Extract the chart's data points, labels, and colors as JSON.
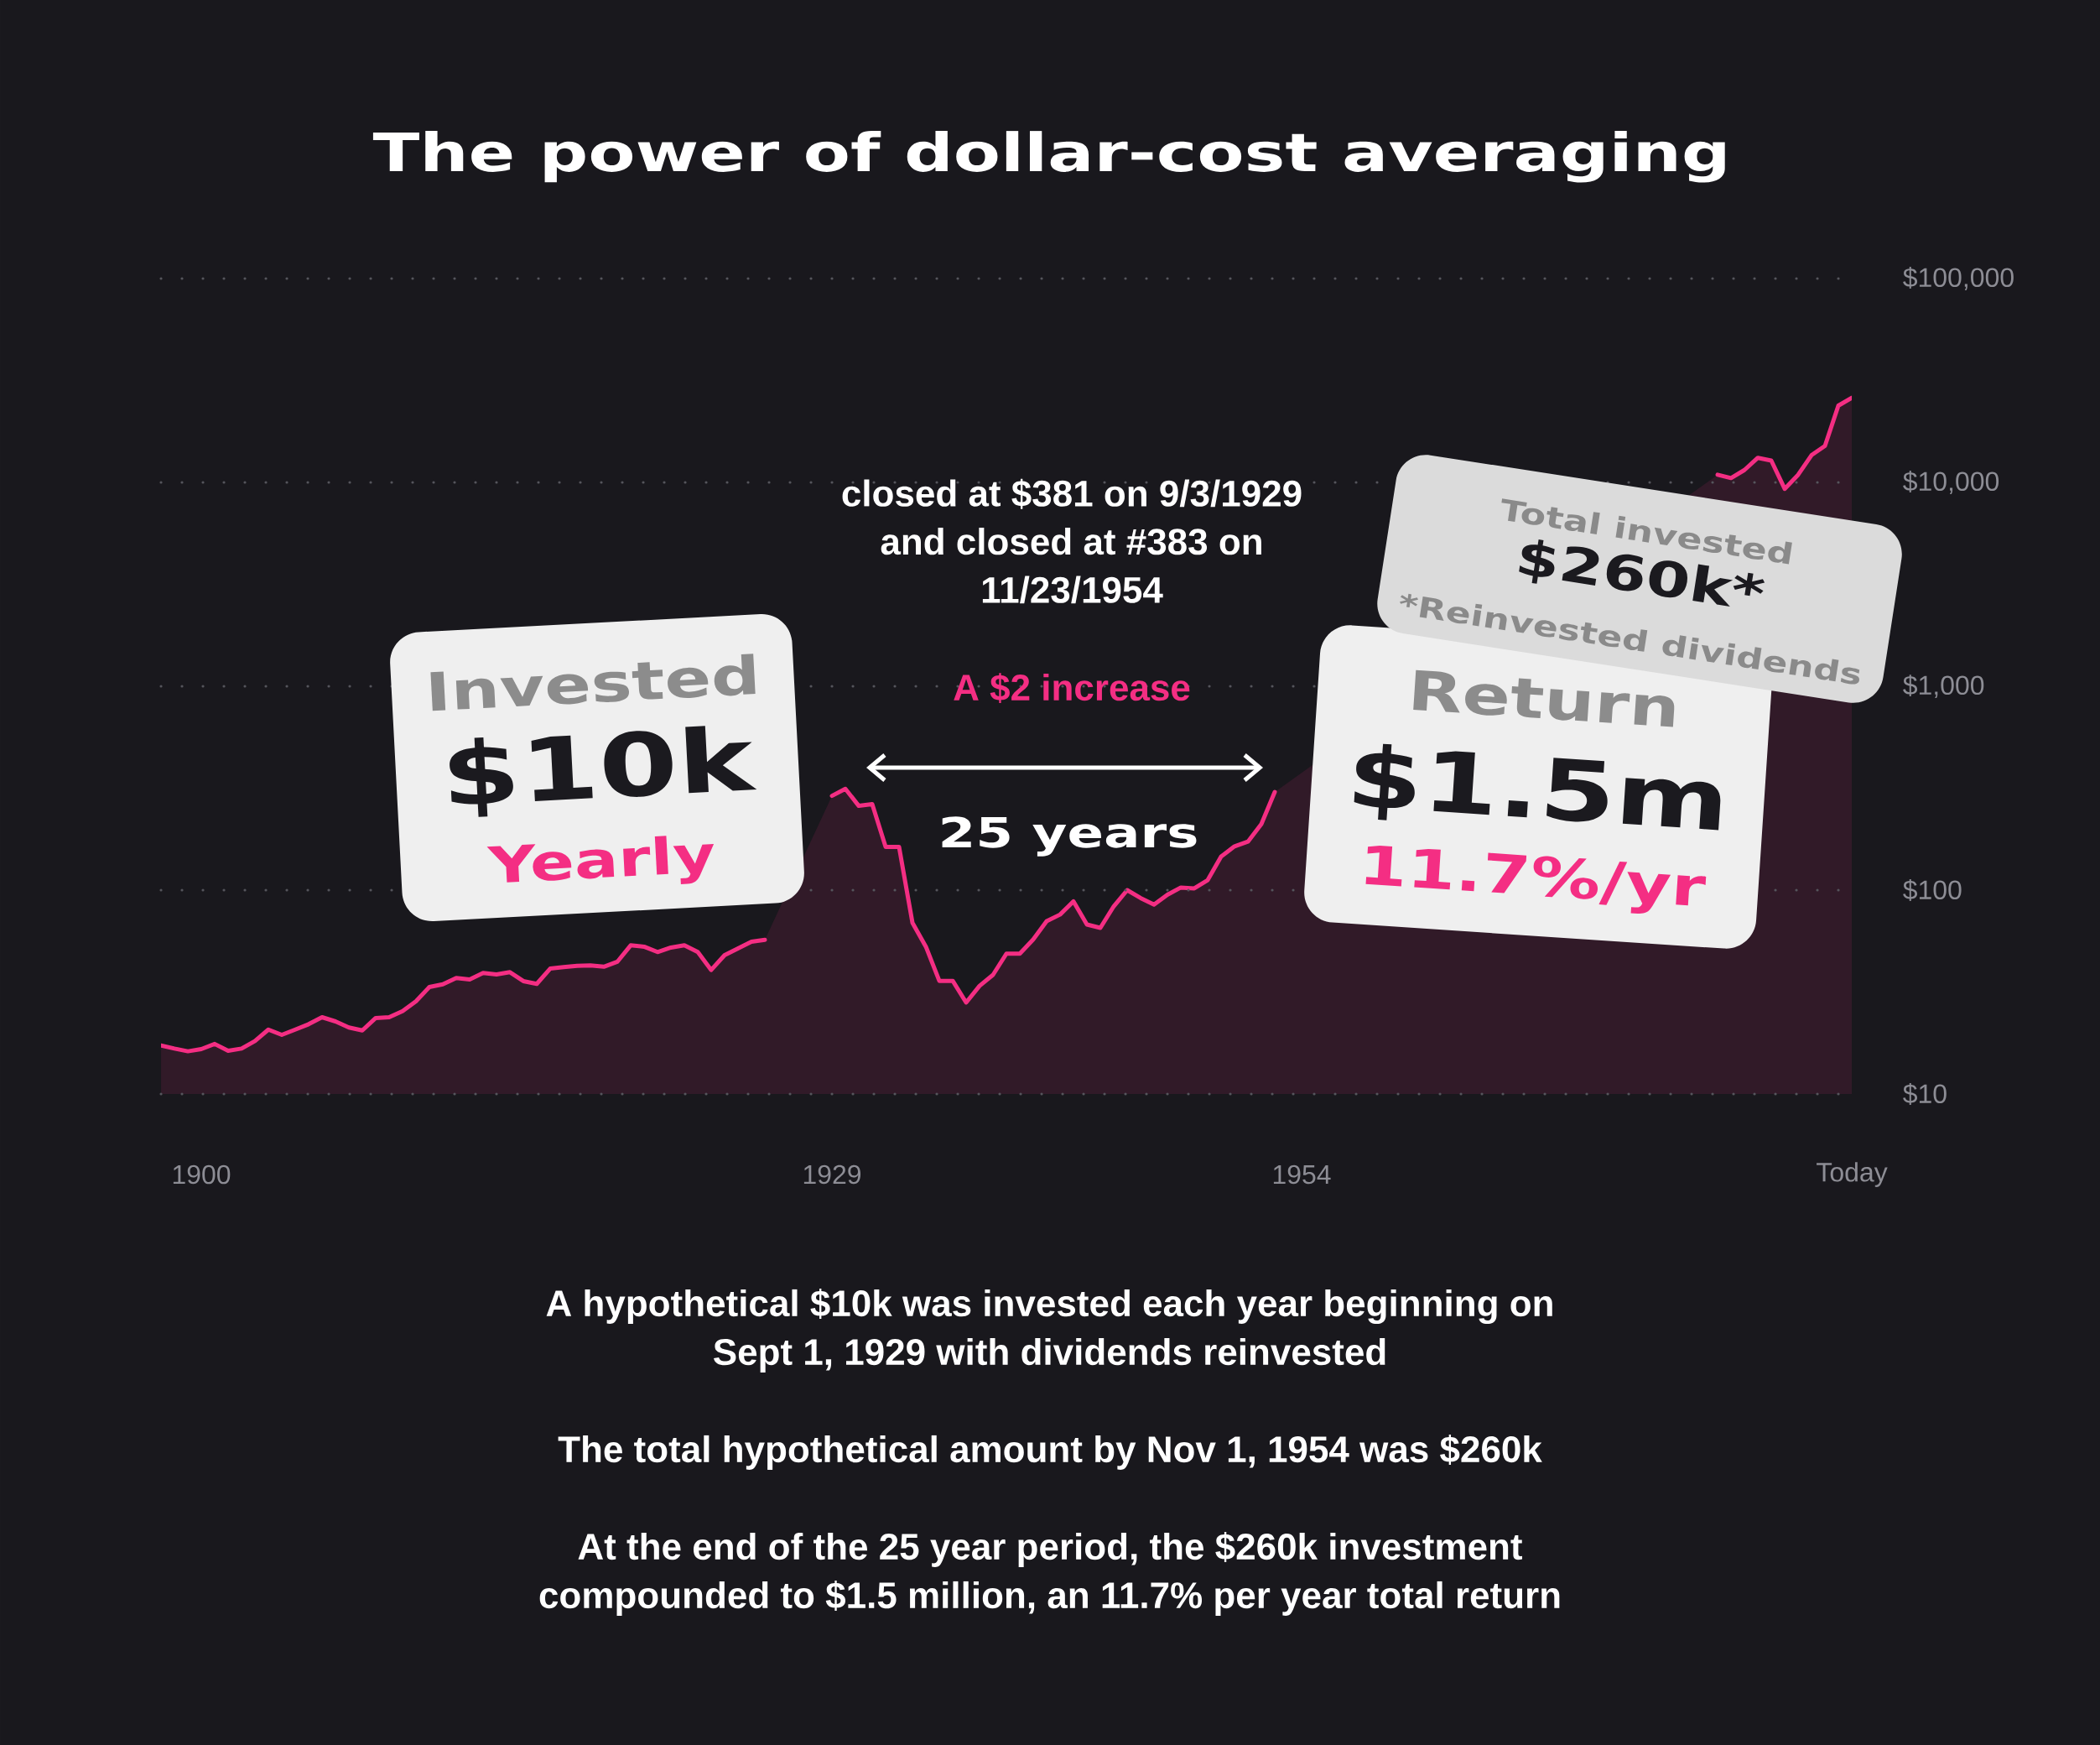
{
  "chart_data": {
    "type": "area",
    "title": "The power of dollar-cost averaging",
    "categories": [
      null,
      null,
      null,
      "1900",
      null,
      null,
      null,
      null,
      null,
      null,
      null,
      null,
      null,
      null,
      null,
      null,
      null,
      null,
      null,
      null,
      null,
      null,
      null,
      null,
      null,
      null,
      null,
      null,
      null,
      null,
      null,
      null,
      null,
      null,
      null,
      null,
      null,
      null,
      null,
      null,
      null,
      null,
      null,
      null,
      null,
      null,
      null,
      null,
      null,
      null,
      "1929",
      null,
      null,
      null,
      null,
      null,
      null,
      null,
      null,
      null,
      null,
      null,
      null,
      null,
      null,
      null,
      null,
      null,
      null,
      null,
      null,
      null,
      null,
      null,
      null,
      null,
      null,
      null,
      null,
      null,
      null,
      null,
      null,
      null,
      null,
      "1954",
      null,
      null,
      null,
      null,
      null,
      null,
      null,
      null,
      null,
      null,
      null,
      null,
      null,
      null,
      null,
      null,
      null,
      null,
      null,
      null,
      null,
      null,
      null,
      null,
      null,
      null,
      null,
      null,
      null,
      null,
      null,
      null,
      null,
      null,
      null,
      null,
      null,
      null,
      null,
      null,
      "Today"
    ],
    "values": [
      17.3,
      16.7,
      16.2,
      16.6,
      17.6,
      16.3,
      16.7,
      18.2,
      20.7,
      19.5,
      20.7,
      22.0,
      23.8,
      22.7,
      21.2,
      20.5,
      23.6,
      23.8,
      25.5,
      28.5,
      33.5,
      34.5,
      37.1,
      36.5,
      39.2,
      38.6,
      39.6,
      35.8,
      34.7,
      41.2,
      41.9,
      42.5,
      42.7,
      42.1,
      44.5,
      53.6,
      52.8,
      49.7,
      52.3,
      53.6,
      49.7,
      40.6,
      48.0,
      51.8,
      55.8,
      57.0,
      null,
      null,
      null,
      null,
      290,
      314,
      259,
      264,
      163,
      163,
      69.1,
      52.8,
      35.9,
      35.9,
      28.1,
      33.9,
      38.4,
      48.8,
      48.8,
      57.3,
      70.4,
      75.9,
      88.1,
      67.8,
      65.3,
      83.3,
      100,
      91.5,
      84.9,
      94.9,
      103,
      102,
      112,
      146,
      164,
      173,
      211,
      303,
      null,
      null,
      null,
      null,
      null,
      null,
      null,
      null,
      null,
      null,
      null,
      null,
      null,
      null,
      null,
      null,
      null,
      null,
      null,
      null,
      null,
      null,
      null,
      null,
      null,
      null,
      null,
      null,
      null,
      null,
      null,
      null,
      10900,
      10500,
      11500,
      13200,
      12800,
      9300,
      10900,
      13600,
      15100,
      23800,
      26000
    ],
    "color": "#f42e83",
    "log": true,
    "ylim": [
      10,
      100000
    ],
    "yticks": [
      {
        "value": 10,
        "label": "$10"
      },
      {
        "value": 100,
        "label": "$100"
      },
      {
        "value": 1000,
        "label": "$1,000"
      },
      {
        "value": 10000,
        "label": "$10,000"
      },
      {
        "value": 100000,
        "label": "$100,000"
      }
    ],
    "grid": "y",
    "annotations": [
      "closed at $381 on 9/3/1929 and closed at #383 on 11/23/1954",
      "A $2 increase",
      "25 years",
      "Invested",
      "$10k",
      "Yearly",
      "Total invested",
      "$260k*",
      "*Reinvested dividends",
      "Return",
      "$1.5m",
      "11.7%/yr",
      "A hypothetical $10k was invested each year beginning on Sept 1, 1929 with dividends reinvested",
      "The total hypothetical amount by Nov 1, 1954 was $260k",
      "At the end of the 25 year period, the $260k investment compounded to $1.5 million, an 11.7% per year total return"
    ]
  }
}
